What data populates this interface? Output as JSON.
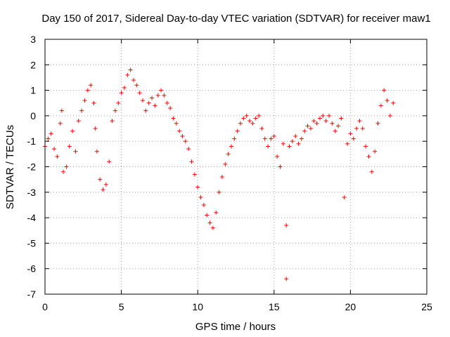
{
  "chart_data": {
    "type": "scatter",
    "title": "Day 150 of 2017, Sidereal Day-to-day VTEC variation (SDTVAR) for receiver maw1",
    "xlabel": "GPS time / hours",
    "ylabel": "SDTVAR / TECUs",
    "xlim": [
      0,
      25
    ],
    "ylim": [
      -7,
      3
    ],
    "x_ticks": [
      0,
      5,
      10,
      15,
      20,
      25
    ],
    "y_ticks": [
      -7,
      -6,
      -5,
      -4,
      -3,
      -2,
      -1,
      0,
      1,
      2,
      3
    ],
    "x_tick_labels": [
      "0",
      "5",
      "10",
      "15",
      "20",
      "25"
    ],
    "y_tick_labels": [
      "-7",
      "-6",
      "-5",
      "-4",
      "-3",
      "-2",
      "-1",
      "0",
      "1",
      "2",
      "3"
    ],
    "grid": true,
    "marker": "+",
    "marker_color": "#ff0000",
    "series": [
      {
        "name": "maw1",
        "points": [
          [
            0.0,
            -1.2
          ],
          [
            0.2,
            -0.9
          ],
          [
            0.4,
            -0.7
          ],
          [
            0.6,
            -1.3
          ],
          [
            0.8,
            -1.6
          ],
          [
            1.0,
            -0.3
          ],
          [
            1.1,
            0.2
          ],
          [
            1.2,
            -2.2
          ],
          [
            1.4,
            -2.0
          ],
          [
            1.6,
            -1.2
          ],
          [
            1.8,
            -0.6
          ],
          [
            2.0,
            -1.4
          ],
          [
            2.2,
            -0.2
          ],
          [
            2.4,
            0.2
          ],
          [
            2.6,
            0.6
          ],
          [
            2.8,
            1.0
          ],
          [
            3.0,
            1.2
          ],
          [
            3.2,
            0.5
          ],
          [
            3.3,
            -0.5
          ],
          [
            3.4,
            -1.4
          ],
          [
            3.6,
            -2.5
          ],
          [
            3.8,
            -2.9
          ],
          [
            4.0,
            -2.7
          ],
          [
            4.2,
            -1.8
          ],
          [
            4.4,
            -0.2
          ],
          [
            4.6,
            0.2
          ],
          [
            4.8,
            0.5
          ],
          [
            5.0,
            0.9
          ],
          [
            5.2,
            1.1
          ],
          [
            5.4,
            1.6
          ],
          [
            5.6,
            1.8
          ],
          [
            5.8,
            1.4
          ],
          [
            6.0,
            1.2
          ],
          [
            6.2,
            0.9
          ],
          [
            6.4,
            0.6
          ],
          [
            6.6,
            0.2
          ],
          [
            6.8,
            0.5
          ],
          [
            7.0,
            0.7
          ],
          [
            7.2,
            0.4
          ],
          [
            7.4,
            0.8
          ],
          [
            7.6,
            1.0
          ],
          [
            7.8,
            0.8
          ],
          [
            8.0,
            0.5
          ],
          [
            8.2,
            0.3
          ],
          [
            8.4,
            -0.1
          ],
          [
            8.6,
            -0.3
          ],
          [
            8.8,
            -0.6
          ],
          [
            9.0,
            -0.8
          ],
          [
            9.2,
            -1.0
          ],
          [
            9.4,
            -1.3
          ],
          [
            9.6,
            -1.8
          ],
          [
            9.8,
            -2.3
          ],
          [
            10.0,
            -2.8
          ],
          [
            10.2,
            -3.2
          ],
          [
            10.4,
            -3.5
          ],
          [
            10.6,
            -3.9
          ],
          [
            10.8,
            -4.2
          ],
          [
            11.0,
            -4.4
          ],
          [
            11.2,
            -3.8
          ],
          [
            11.4,
            -3.0
          ],
          [
            11.6,
            -2.4
          ],
          [
            11.8,
            -1.9
          ],
          [
            12.0,
            -1.5
          ],
          [
            12.2,
            -1.2
          ],
          [
            12.4,
            -0.9
          ],
          [
            12.6,
            -0.6
          ],
          [
            12.8,
            -0.3
          ],
          [
            13.0,
            -0.1
          ],
          [
            13.2,
            0.0
          ],
          [
            13.4,
            -0.2
          ],
          [
            13.6,
            -0.3
          ],
          [
            13.8,
            -0.1
          ],
          [
            14.0,
            0.0
          ],
          [
            14.2,
            -0.5
          ],
          [
            14.4,
            -0.9
          ],
          [
            14.6,
            -1.2
          ],
          [
            14.8,
            -0.9
          ],
          [
            15.0,
            -0.8
          ],
          [
            15.2,
            -1.6
          ],
          [
            15.4,
            -2.0
          ],
          [
            15.6,
            -1.1
          ],
          [
            15.8,
            -4.3
          ],
          [
            15.8,
            -6.4
          ],
          [
            16.0,
            -1.2
          ],
          [
            16.2,
            -1.0
          ],
          [
            16.4,
            -0.8
          ],
          [
            16.6,
            -1.1
          ],
          [
            16.8,
            -0.9
          ],
          [
            17.0,
            -0.6
          ],
          [
            17.2,
            -0.4
          ],
          [
            17.4,
            -0.5
          ],
          [
            17.6,
            -0.2
          ],
          [
            17.8,
            -0.3
          ],
          [
            18.0,
            -0.1
          ],
          [
            18.2,
            0.0
          ],
          [
            18.4,
            -0.2
          ],
          [
            18.6,
            0.0
          ],
          [
            18.8,
            -0.3
          ],
          [
            19.0,
            -0.6
          ],
          [
            19.2,
            -0.4
          ],
          [
            19.4,
            -0.1
          ],
          [
            19.6,
            -3.2
          ],
          [
            19.8,
            -1.1
          ],
          [
            20.0,
            -0.7
          ],
          [
            20.2,
            -0.9
          ],
          [
            20.4,
            -0.5
          ],
          [
            20.6,
            -0.2
          ],
          [
            20.8,
            -0.5
          ],
          [
            21.0,
            -1.2
          ],
          [
            21.2,
            -1.6
          ],
          [
            21.4,
            -2.2
          ],
          [
            21.6,
            -1.4
          ],
          [
            21.8,
            -0.3
          ],
          [
            22.0,
            0.4
          ],
          [
            22.2,
            1.0
          ],
          [
            22.4,
            0.6
          ],
          [
            22.6,
            0.0
          ],
          [
            22.8,
            0.5
          ]
        ]
      }
    ]
  }
}
